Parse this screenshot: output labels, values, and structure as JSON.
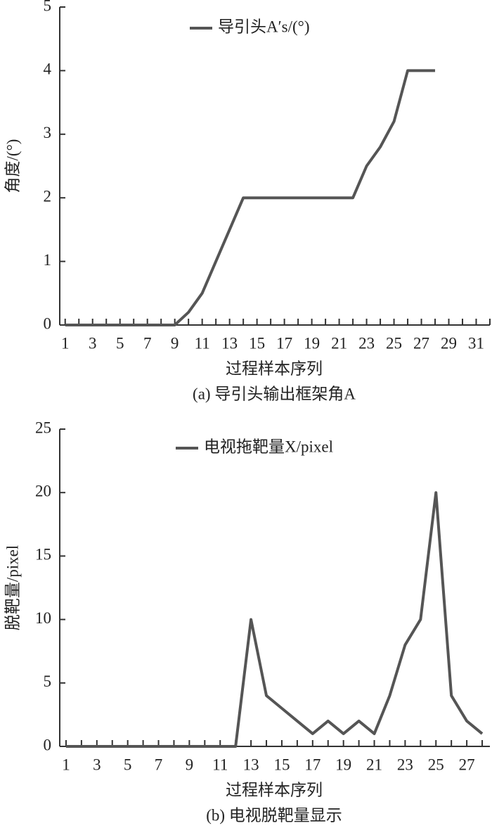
{
  "chart_data": [
    {
      "type": "line",
      "x_label": "过程样本序列",
      "y_label": "角度/(°)",
      "caption": "(a) 导引头输出框架角A",
      "x": [
        1,
        2,
        3,
        4,
        5,
        6,
        7,
        8,
        9,
        10,
        11,
        12,
        13,
        14,
        15,
        16,
        17,
        18,
        19,
        20,
        21,
        22,
        23,
        24,
        25,
        26,
        27,
        28
      ],
      "series": [
        {
          "name": "导引头A′s/(°)",
          "color": "#555555",
          "values": [
            0,
            0,
            0,
            0,
            0,
            0,
            0,
            0,
            0,
            0.2,
            0.5,
            1,
            1.5,
            2,
            2,
            2,
            2,
            2,
            2,
            2,
            2,
            2,
            2.5,
            2.8,
            3.2,
            4,
            4,
            4
          ]
        }
      ],
      "xlim": [
        0.5,
        32
      ],
      "xticks": [
        1,
        3,
        5,
        7,
        9,
        11,
        13,
        15,
        17,
        19,
        21,
        23,
        25,
        27,
        29,
        31
      ],
      "xminorticks": [
        2,
        4,
        6,
        8,
        10,
        12,
        14,
        16,
        18,
        20,
        22,
        24,
        26,
        28,
        30,
        32
      ],
      "ylim": [
        0,
        5
      ],
      "yticks": [
        0,
        1,
        2,
        3,
        4,
        5
      ]
    },
    {
      "type": "line",
      "x_label": "过程样本序列",
      "y_label": "脱靶量/pixel",
      "caption": "(b) 电视脱靶量显示",
      "x": [
        1,
        2,
        3,
        4,
        5,
        6,
        7,
        8,
        9,
        10,
        11,
        12,
        13,
        14,
        15,
        16,
        17,
        18,
        19,
        20,
        21,
        22,
        23,
        24,
        25,
        26,
        27,
        28
      ],
      "series": [
        {
          "name": "电视拖靶量X/pixel",
          "color": "#555555",
          "values": [
            0,
            0,
            0,
            0,
            0,
            0,
            0,
            0,
            0,
            0,
            0,
            0,
            10,
            4,
            3,
            2,
            1,
            2,
            1,
            2,
            1,
            4,
            8,
            10,
            20,
            4,
            2,
            1
          ]
        }
      ],
      "xlim": [
        0.5,
        28.5
      ],
      "xticks": [
        1,
        3,
        5,
        7,
        9,
        11,
        13,
        15,
        17,
        19,
        21,
        23,
        25,
        27
      ],
      "xminorticks": [
        2,
        4,
        6,
        8,
        10,
        12,
        14,
        16,
        18,
        20,
        22,
        24,
        26,
        28
      ],
      "ylim": [
        0,
        25
      ],
      "yticks": [
        0,
        5,
        10,
        15,
        20,
        25
      ]
    }
  ]
}
